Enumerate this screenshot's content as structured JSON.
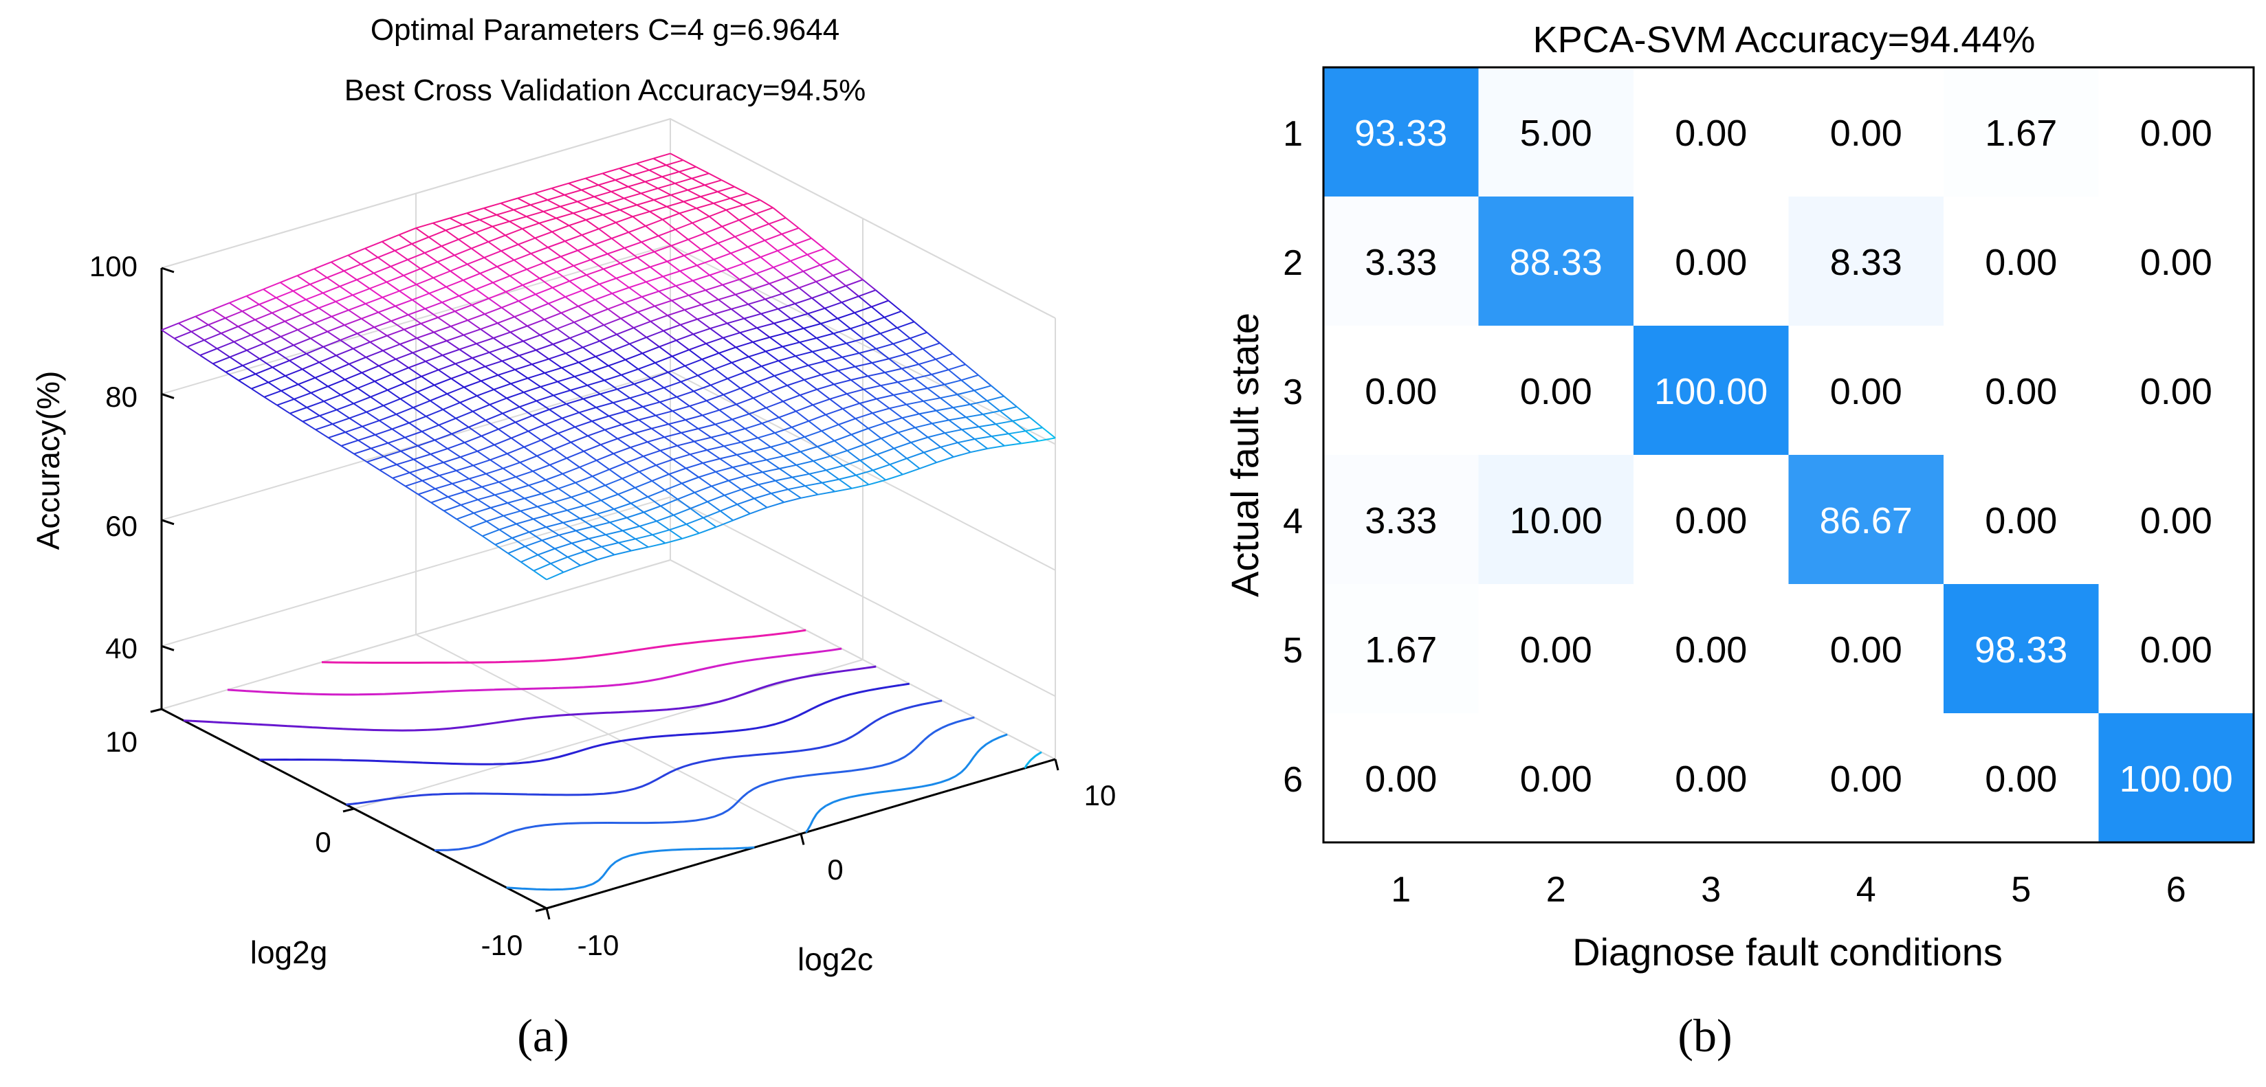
{
  "chart_data": [
    {
      "type": "surface3d",
      "panel_label": "(a)",
      "title_line1": "Optimal Parameters C=4 g=6.9644",
      "title_line2": "Best Cross Validation Accuracy=94.5%",
      "xlabel": "log2c",
      "ylabel": "log2g",
      "zlabel": "Accuracy(%)",
      "xlim": [
        -10,
        10
      ],
      "ylim": [
        -10,
        10
      ],
      "zlim": [
        30,
        100
      ],
      "x_ticks": [
        "-10",
        "0",
        "10"
      ],
      "y_ticks": [
        "-10",
        "0",
        "10"
      ],
      "z_ticks": [
        "40",
        "60",
        "80",
        "100"
      ],
      "surface_range": [
        80,
        94.5
      ],
      "grid": true
    },
    {
      "type": "heatmap",
      "panel_label": "(b)",
      "title": "KPCA-SVM Accuracy=94.44%",
      "xlabel": "Diagnose fault conditions",
      "ylabel": "Actual fault state",
      "x_categories": [
        "1",
        "2",
        "3",
        "4",
        "5",
        "6"
      ],
      "y_categories": [
        "1",
        "2",
        "3",
        "4",
        "5",
        "6"
      ],
      "labels": [
        [
          "93.33",
          "5.00",
          "0.00",
          "0.00",
          "1.67",
          "0.00"
        ],
        [
          "3.33",
          "88.33",
          "0.00",
          "8.33",
          "0.00",
          "0.00"
        ],
        [
          "0.00",
          "0.00",
          "100.00",
          "0.00",
          "0.00",
          "0.00"
        ],
        [
          "3.33",
          "10.00",
          "0.00",
          "86.67",
          "0.00",
          "0.00"
        ],
        [
          "1.67",
          "0.00",
          "0.00",
          "0.00",
          "98.33",
          "0.00"
        ],
        [
          "0.00",
          "0.00",
          "0.00",
          "0.00",
          "0.00",
          "100.00"
        ]
      ],
      "values": [
        [
          93.33,
          5.0,
          0.0,
          0.0,
          1.67,
          0.0
        ],
        [
          3.33,
          88.33,
          0.0,
          8.33,
          0.0,
          0.0
        ],
        [
          0.0,
          0.0,
          100.0,
          0.0,
          0.0,
          0.0
        ],
        [
          3.33,
          10.0,
          0.0,
          86.67,
          0.0,
          0.0
        ],
        [
          1.67,
          0.0,
          0.0,
          0.0,
          98.33,
          0.0
        ],
        [
          0.0,
          0.0,
          0.0,
          0.0,
          0.0,
          100.0
        ]
      ],
      "colors": {
        "high": "#1e90f5",
        "low": "#ffffff"
      }
    }
  ]
}
